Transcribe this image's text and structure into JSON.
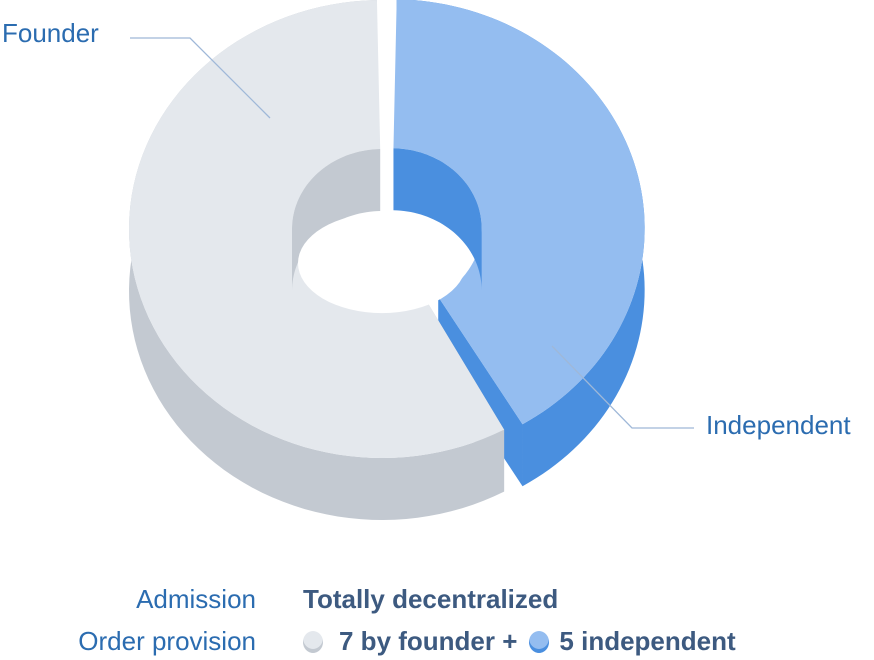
{
  "chart_data": {
    "type": "pie",
    "style": "3d-donut",
    "categories": [
      "Founder",
      "Independent"
    ],
    "values": [
      7,
      5
    ],
    "colors": {
      "Founder": {
        "top": "#e4e8ed",
        "side": "#c3c9d1"
      },
      "Independent": {
        "top": "#94bdf0",
        "side": "#4a8fdf"
      }
    }
  },
  "labels": {
    "founder": "Founder",
    "independent": "Independent"
  },
  "details": {
    "admission_label": "Admission",
    "admission_value": "Totally decentralized",
    "order_label": "Order provision",
    "founder_part": "7 by founder +",
    "independent_part": "5 independent"
  },
  "line_color": "#9fb8d8"
}
